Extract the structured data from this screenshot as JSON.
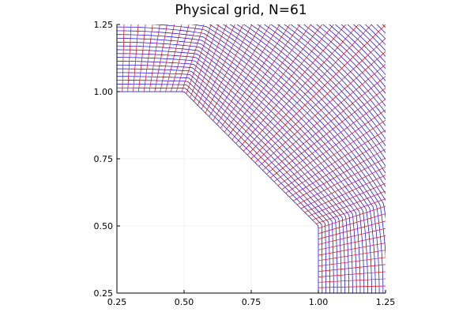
{
  "chart_data": {
    "type": "line",
    "title": "Physical grid, N=61",
    "xlabel": "",
    "ylabel": "",
    "xlim": [
      0.25,
      1.25
    ],
    "ylim": [
      0.25,
      1.25
    ],
    "xticks": [
      0.25,
      0.5,
      0.75,
      1.0,
      1.25
    ],
    "yticks": [
      0.25,
      0.5,
      0.75,
      1.0,
      1.25
    ],
    "xtick_labels": [
      "0.25",
      "0.50",
      "0.75",
      "1.00",
      "1.25"
    ],
    "ytick_labels": [
      "0.25",
      "0.50",
      "0.75",
      "1.00",
      "1.25"
    ],
    "grid": true,
    "aspect": "equal",
    "N": 61,
    "inner_boundary": [
      [
        0.25,
        1.0
      ],
      [
        0.5,
        1.0
      ],
      [
        1.0,
        0.5
      ],
      [
        1.0,
        0.25
      ]
    ],
    "outer_radius": 1.6,
    "outer_center": [
      0.25,
      0.25
    ],
    "series": [
      {
        "color": "#0000ff"
      },
      {
        "color": "#ff0000"
      }
    ]
  }
}
